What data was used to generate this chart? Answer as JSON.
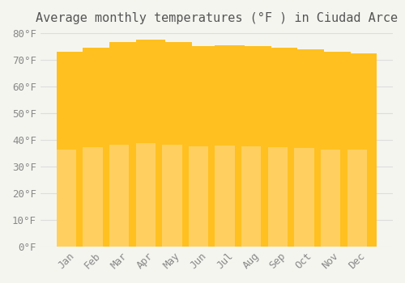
{
  "months": [
    "Jan",
    "Feb",
    "Mar",
    "Apr",
    "May",
    "Jun",
    "Jul",
    "Aug",
    "Sep",
    "Oct",
    "Nov",
    "Dec"
  ],
  "values": [
    73.0,
    74.5,
    76.5,
    77.5,
    76.5,
    75.0,
    75.5,
    75.0,
    74.5,
    74.0,
    73.0,
    72.5
  ],
  "bar_color_top": "#FFC020",
  "bar_color_bottom": "#FFD060",
  "title": "Average monthly temperatures (°F ) in Ciudad Arce",
  "ylabel": "",
  "xlabel": "",
  "ylim": [
    0,
    80
  ],
  "ytick_step": 10,
  "background_color": "#F5F5F0",
  "plot_bg_color": "#F5F5F0",
  "title_fontsize": 11,
  "tick_fontsize": 9,
  "grid_color": "#DDDDDD"
}
